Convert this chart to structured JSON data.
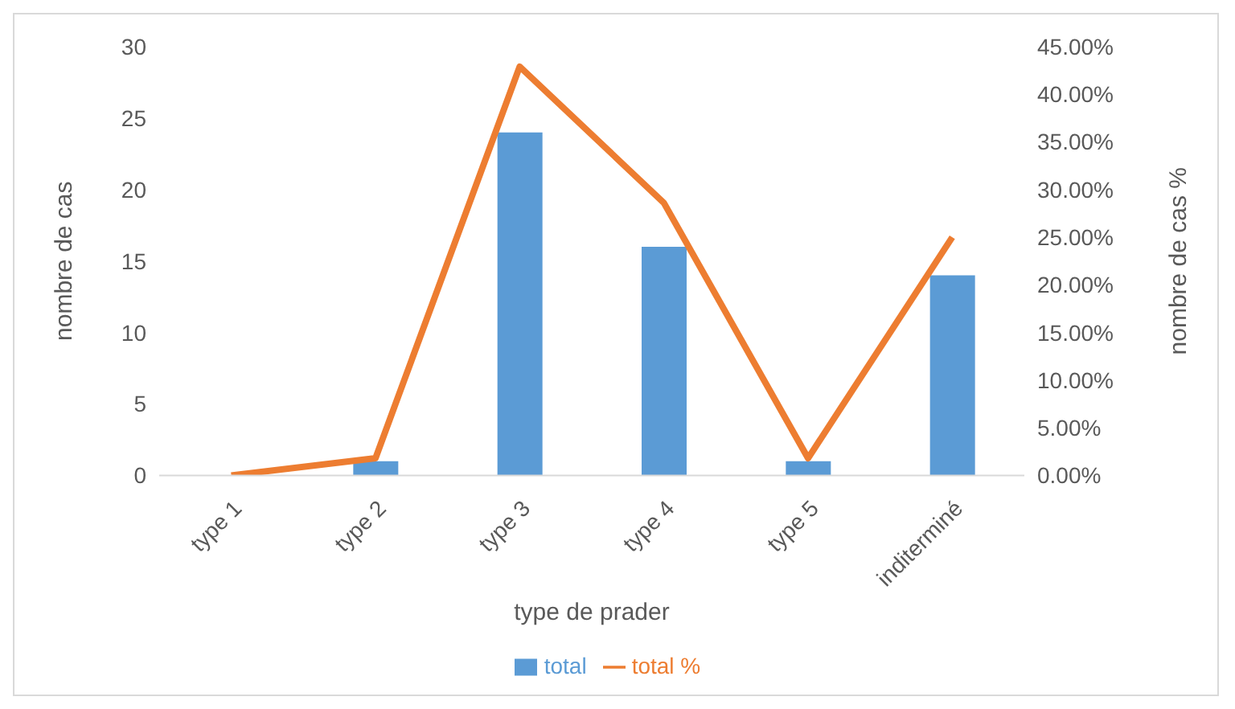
{
  "chart_data": {
    "type": "bar",
    "categories": [
      "type 1",
      "type 2",
      "type 3",
      "type 4",
      "type 5",
      "inditerminé"
    ],
    "xlabel": "type de prader",
    "ylabel": "nombre de cas",
    "y2label": "nombre de cas %",
    "series": [
      {
        "name": "total",
        "color": "#5b9bd5",
        "values": [
          0,
          1,
          24,
          16,
          1,
          14
        ]
      },
      {
        "name": "total %",
        "type": "line",
        "axis": "y2",
        "color": "#ed7d31",
        "values": [
          0,
          1.8,
          42.9,
          28.6,
          1.8,
          25
        ]
      }
    ],
    "ylim": [
      0,
      30
    ],
    "yticks": [
      0,
      5,
      10,
      15,
      20,
      25,
      30
    ],
    "y2lim": [
      0,
      45
    ],
    "y2ticks": [
      {
        "value": 0,
        "label": "0.00%"
      },
      {
        "value": 5,
        "label": "5.00%"
      },
      {
        "value": 10,
        "label": "10.00%"
      },
      {
        "value": 15,
        "label": "15.00%"
      },
      {
        "value": 20,
        "label": "20.00%"
      },
      {
        "value": 25,
        "label": "25.00%"
      },
      {
        "value": 30,
        "label": "30.00%"
      },
      {
        "value": 35,
        "label": "35.00%"
      },
      {
        "value": 40,
        "label": "40.00%"
      },
      {
        "value": 45,
        "label": "45.00%"
      }
    ],
    "legend": "bottom",
    "marker": "none"
  }
}
